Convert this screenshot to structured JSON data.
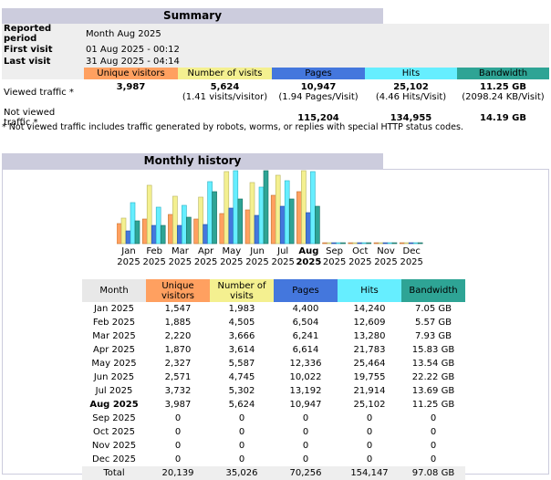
{
  "summary": {
    "title": "Summary",
    "reported_period_label": "Reported period",
    "reported_period_value": "Month Aug 2025",
    "first_visit_label": "First visit",
    "first_visit_value": "01 Aug 2025 - 00:12",
    "last_visit_label": "Last visit",
    "last_visit_value": "31 Aug 2025 - 04:14",
    "headers": {
      "unique_visitors": "Unique visitors",
      "visits": "Number of visits",
      "pages": "Pages",
      "hits": "Hits",
      "bandwidth": "Bandwidth"
    },
    "viewed": {
      "label": "Viewed traffic *",
      "unique_visitors": "3,987",
      "visits": "5,624",
      "visits_sub": "(1.41 visits/visitor)",
      "pages": "10,947",
      "pages_sub": "(1.94 Pages/Visit)",
      "hits": "25,102",
      "hits_sub": "(4.46 Hits/Visit)",
      "bandwidth": "11.25 GB",
      "bandwidth_sub": "(2098.24 KB/Visit)"
    },
    "not_viewed": {
      "label_line1": "Not viewed",
      "label_line2": "traffic *",
      "pages": "115,204",
      "hits": "134,955",
      "bandwidth": "14.19 GB"
    },
    "note": "* Not viewed traffic includes traffic generated by robots, worms, or replies with special HTTP status codes."
  },
  "colors": {
    "unique_visitors": "#ffa060",
    "visits": "#f4f090",
    "pages": "#4477dd",
    "hits": "#66eeff",
    "bandwidth": "#2ea495",
    "section_title": "#ccccdd"
  },
  "history": {
    "title": "Monthly history",
    "headers": {
      "month": "Month",
      "unique_visitors": "Unique visitors",
      "visits": "Number of visits",
      "pages": "Pages",
      "hits": "Hits",
      "bandwidth": "Bandwidth"
    },
    "rows": [
      {
        "month": "Jan 2025",
        "uv": "1,547",
        "visits": "1,983",
        "pages": "4,400",
        "hits": "14,240",
        "bw": "7.05 GB"
      },
      {
        "month": "Feb 2025",
        "uv": "1,885",
        "visits": "4,505",
        "pages": "6,504",
        "hits": "12,609",
        "bw": "5.57 GB"
      },
      {
        "month": "Mar 2025",
        "uv": "2,220",
        "visits": "3,666",
        "pages": "6,241",
        "hits": "13,280",
        "bw": "7.93 GB"
      },
      {
        "month": "Apr 2025",
        "uv": "1,870",
        "visits": "3,614",
        "pages": "6,614",
        "hits": "21,783",
        "bw": "15.83 GB"
      },
      {
        "month": "May 2025",
        "uv": "2,327",
        "visits": "5,587",
        "pages": "12,336",
        "hits": "25,464",
        "bw": "13.54 GB"
      },
      {
        "month": "Jun 2025",
        "uv": "2,571",
        "visits": "4,745",
        "pages": "10,022",
        "hits": "19,755",
        "bw": "22.22 GB"
      },
      {
        "month": "Jul 2025",
        "uv": "3,732",
        "visits": "5,302",
        "pages": "13,192",
        "hits": "21,914",
        "bw": "13.69 GB"
      },
      {
        "month": "Aug 2025",
        "uv": "3,987",
        "visits": "5,624",
        "pages": "10,947",
        "hits": "25,102",
        "bw": "11.25 GB"
      },
      {
        "month": "Sep 2025",
        "uv": "0",
        "visits": "0",
        "pages": "0",
        "hits": "0",
        "bw": "0"
      },
      {
        "month": "Oct 2025",
        "uv": "0",
        "visits": "0",
        "pages": "0",
        "hits": "0",
        "bw": "0"
      },
      {
        "month": "Nov 2025",
        "uv": "0",
        "visits": "0",
        "pages": "0",
        "hits": "0",
        "bw": "0"
      },
      {
        "month": "Dec 2025",
        "uv": "0",
        "visits": "0",
        "pages": "0",
        "hits": "0",
        "bw": "0"
      }
    ],
    "total": {
      "month": "Total",
      "uv": "20,139",
      "visits": "35,026",
      "pages": "70,256",
      "hits": "154,147",
      "bw": "97.08 GB"
    }
  },
  "chart_data": {
    "type": "bar",
    "title": "Monthly history",
    "categories": [
      "Jan 2025",
      "Feb 2025",
      "Mar 2025",
      "Apr 2025",
      "May 2025",
      "Jun 2025",
      "Jul 2025",
      "Aug 2025",
      "Sep 2025",
      "Oct 2025",
      "Nov 2025",
      "Dec 2025"
    ],
    "month_labels": [
      "Jan",
      "Feb",
      "Mar",
      "Apr",
      "May",
      "Jun",
      "Jul",
      "Aug",
      "Sep",
      "Oct",
      "Nov",
      "Dec"
    ],
    "year_label": "2025",
    "highlight_index": 7,
    "series": [
      {
        "name": "Unique visitors",
        "values": [
          1547,
          1885,
          2220,
          1870,
          2327,
          2571,
          3732,
          3987,
          0,
          0,
          0,
          0
        ]
      },
      {
        "name": "Number of visits",
        "values": [
          1983,
          4505,
          3666,
          3614,
          5587,
          4745,
          5302,
          5624,
          0,
          0,
          0,
          0
        ]
      },
      {
        "name": "Pages",
        "values": [
          4400,
          6504,
          6241,
          6614,
          12336,
          10022,
          13192,
          10947,
          0,
          0,
          0,
          0
        ]
      },
      {
        "name": "Hits",
        "values": [
          14240,
          12609,
          13280,
          21783,
          25464,
          19755,
          21914,
          25102,
          0,
          0,
          0,
          0
        ]
      },
      {
        "name": "Bandwidth",
        "unit": "GB",
        "values": [
          7.05,
          5.57,
          7.93,
          15.83,
          13.54,
          22.22,
          13.69,
          11.25,
          0,
          0,
          0,
          0
        ]
      }
    ],
    "scale_groups": [
      {
        "series": [
          "Unique visitors",
          "Number of visits"
        ],
        "max": 5624
      },
      {
        "series": [
          "Pages",
          "Hits"
        ],
        "max": 25464
      },
      {
        "series": [
          "Bandwidth"
        ],
        "max": 22.22
      }
    ]
  }
}
